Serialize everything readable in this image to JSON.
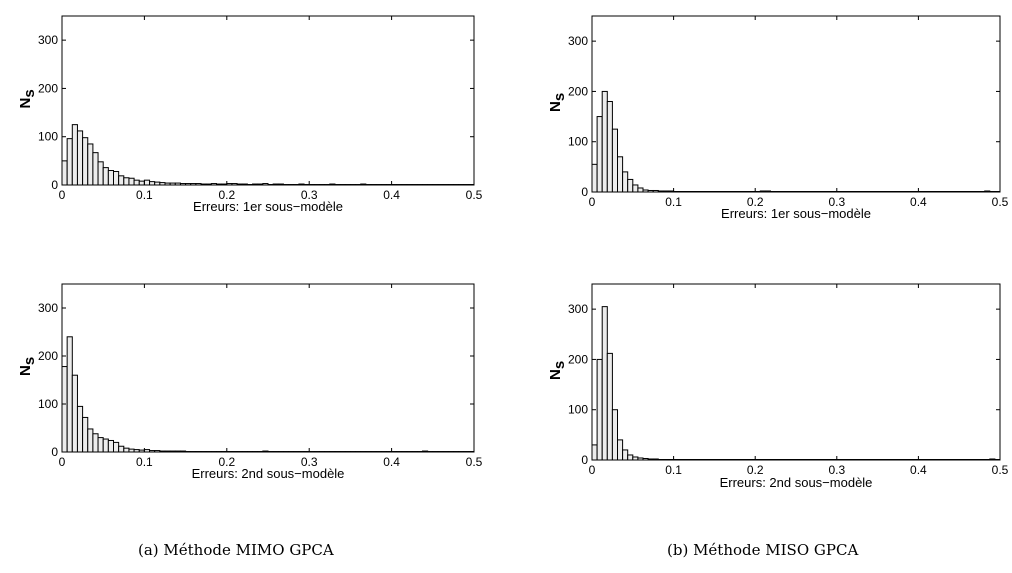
{
  "captions": [
    "(a) Méthode MIMO GPCA",
    "(b) Méthode MISO GPCA"
  ],
  "chart_data": [
    {
      "type": "bar",
      "xlabel": "Erreurs: 1er sous−modèle",
      "ylabel": "N",
      "ylabel_sub": "s",
      "xlim": [
        0,
        0.5
      ],
      "ylim": [
        0,
        350
      ],
      "xticks": [
        "0",
        "0.1",
        "0.2",
        "0.3",
        "0.4",
        "0.5"
      ],
      "yticks": [
        "0",
        "100",
        "200",
        "300"
      ],
      "bin_width": 0.00625,
      "values": [
        50,
        96,
        125,
        112,
        98,
        85,
        67,
        48,
        36,
        30,
        28,
        19,
        15,
        14,
        10,
        8,
        10,
        7,
        6,
        5,
        4,
        4,
        4,
        3,
        3,
        3,
        3,
        2,
        2,
        3,
        2,
        2,
        3,
        3,
        2,
        2,
        1,
        2,
        2,
        3,
        1,
        2,
        2,
        1,
        1,
        1,
        2,
        1,
        1,
        1,
        1,
        1,
        2,
        1,
        1,
        1,
        1,
        1,
        2,
        1,
        1,
        1,
        1,
        1,
        1,
        1,
        1,
        1,
        1,
        1,
        1,
        1,
        1,
        1,
        1,
        1,
        1,
        1,
        1,
        1
      ]
    },
    {
      "type": "bar",
      "xlabel": "Erreurs: 1er sous−modèle",
      "ylabel": "N",
      "ylabel_sub": "s",
      "xlim": [
        0,
        0.5
      ],
      "ylim": [
        0,
        350
      ],
      "xticks": [
        "0",
        "0.1",
        "0.2",
        "0.3",
        "0.4",
        "0.5"
      ],
      "yticks": [
        "0",
        "100",
        "200",
        "300"
      ],
      "bin_width": 0.00625,
      "values": [
        55,
        150,
        200,
        180,
        125,
        70,
        40,
        25,
        14,
        8,
        4,
        3,
        3,
        2,
        2,
        2,
        1,
        1,
        1,
        1,
        1,
        1,
        1,
        1,
        1,
        1,
        1,
        1,
        1,
        1,
        1,
        1,
        1,
        2,
        2,
        1,
        1,
        1,
        1,
        1,
        1,
        1,
        1,
        1,
        1,
        1,
        1,
        1,
        1,
        1,
        1,
        1,
        1,
        1,
        1,
        1,
        1,
        1,
        1,
        1,
        1,
        1,
        1,
        1,
        1,
        1,
        1,
        1,
        1,
        1,
        1,
        1,
        1,
        1,
        1,
        1,
        1,
        2,
        1,
        1
      ]
    },
    {
      "type": "bar",
      "xlabel": "Erreurs: 2nd sous−modèle",
      "ylabel": "N",
      "ylabel_sub": "s",
      "xlim": [
        0,
        0.5
      ],
      "ylim": [
        0,
        350
      ],
      "xticks": [
        "0",
        "0.1",
        "0.2",
        "0.3",
        "0.4",
        "0.5"
      ],
      "yticks": [
        "0",
        "100",
        "200",
        "300"
      ],
      "bin_width": 0.00625,
      "values": [
        178,
        240,
        160,
        95,
        72,
        48,
        38,
        30,
        27,
        24,
        20,
        12,
        8,
        6,
        5,
        4,
        5,
        3,
        3,
        2,
        2,
        2,
        2,
        2,
        1,
        1,
        1,
        1,
        1,
        1,
        1,
        1,
        1,
        1,
        1,
        1,
        1,
        1,
        1,
        2,
        1,
        1,
        1,
        1,
        1,
        1,
        1,
        1,
        1,
        1,
        1,
        1,
        1,
        1,
        1,
        1,
        1,
        1,
        1,
        1,
        1,
        1,
        1,
        1,
        1,
        1,
        1,
        1,
        1,
        1,
        2,
        1,
        1,
        1,
        1,
        1,
        1,
        1,
        1,
        1
      ]
    },
    {
      "type": "bar",
      "xlabel": "Erreurs: 2nd sous−modèle",
      "ylabel": "N",
      "ylabel_sub": "s",
      "xlim": [
        0,
        0.5
      ],
      "ylim": [
        0,
        350
      ],
      "xticks": [
        "0",
        "0.1",
        "0.2",
        "0.3",
        "0.4",
        "0.5"
      ],
      "yticks": [
        "0",
        "100",
        "200",
        "300"
      ],
      "bin_width": 0.00625,
      "values": [
        30,
        200,
        305,
        212,
        100,
        40,
        20,
        10,
        6,
        4,
        3,
        2,
        2,
        1,
        1,
        1,
        1,
        1,
        1,
        1,
        1,
        1,
        1,
        1,
        1,
        1,
        1,
        1,
        1,
        1,
        1,
        1,
        1,
        1,
        1,
        1,
        1,
        1,
        1,
        1,
        1,
        1,
        1,
        1,
        1,
        1,
        1,
        1,
        1,
        1,
        1,
        1,
        1,
        1,
        1,
        1,
        1,
        1,
        1,
        1,
        1,
        1,
        1,
        1,
        1,
        1,
        1,
        1,
        1,
        1,
        1,
        1,
        1,
        1,
        1,
        1,
        1,
        1,
        2,
        1
      ]
    }
  ]
}
